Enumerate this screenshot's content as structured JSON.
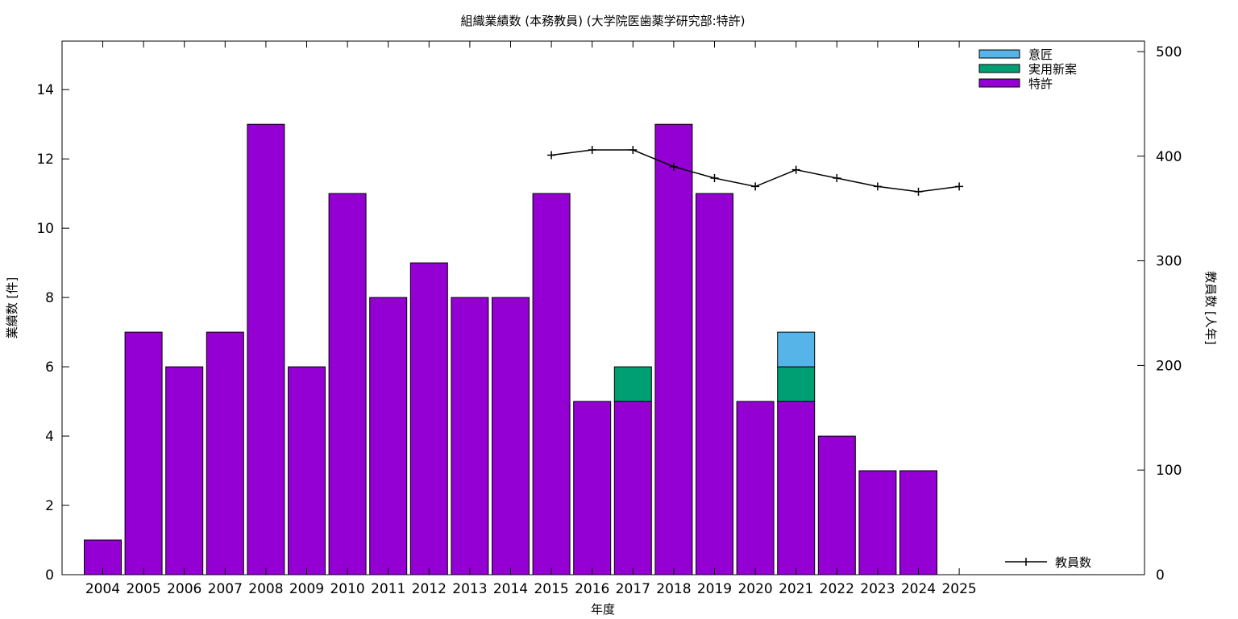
{
  "chart_data": {
    "type": "bar",
    "title": "組織業績数 (本務教員) (大学院医歯薬学研究部:特許)",
    "xlabel": "年度",
    "ylabel": "業績数 [件]",
    "y2label": "教員数 [人年]",
    "categories": [
      "2004",
      "2005",
      "2006",
      "2007",
      "2008",
      "2009",
      "2010",
      "2011",
      "2012",
      "2013",
      "2014",
      "2015",
      "2016",
      "2017",
      "2018",
      "2019",
      "2020",
      "2021",
      "2022",
      "2023",
      "2024",
      "2025"
    ],
    "stacked": true,
    "ylim": [
      0,
      15.4
    ],
    "y_ticks": [
      0,
      2,
      4,
      6,
      8,
      10,
      12,
      14
    ],
    "y2lim": [
      0,
      510
    ],
    "y2_ticks": [
      0,
      100,
      200,
      300,
      400,
      500
    ],
    "grid": false,
    "legend_position": "top-right",
    "series": [
      {
        "name": "特許",
        "color": "#9400d3",
        "axis": "left",
        "values": [
          1,
          7,
          6,
          7,
          13,
          6,
          11,
          8,
          9,
          8,
          8,
          11,
          5,
          5,
          13,
          11,
          5,
          5,
          4,
          3,
          3,
          0
        ]
      },
      {
        "name": "実用新案",
        "color": "#009e73",
        "axis": "left",
        "values": [
          0,
          0,
          0,
          0,
          0,
          0,
          0,
          0,
          0,
          0,
          0,
          0,
          0,
          1,
          0,
          0,
          0,
          1,
          0,
          0,
          0,
          0
        ]
      },
      {
        "name": "意匠",
        "color": "#56b4e9",
        "axis": "left",
        "values": [
          0,
          0,
          0,
          0,
          0,
          0,
          0,
          0,
          0,
          0,
          0,
          0,
          0,
          0,
          0,
          0,
          0,
          1,
          0,
          0,
          0,
          0
        ]
      }
    ],
    "line_series": {
      "name": "教員数",
      "color": "#000000",
      "axis": "right",
      "legend_position": "bottom-right",
      "x": [
        "2015",
        "2016",
        "2017",
        "2018",
        "2019",
        "2020",
        "2021",
        "2022",
        "2023",
        "2024",
        "2025"
      ],
      "values": [
        401,
        406,
        406,
        390,
        379,
        371,
        387,
        379,
        371,
        366,
        371
      ]
    }
  }
}
